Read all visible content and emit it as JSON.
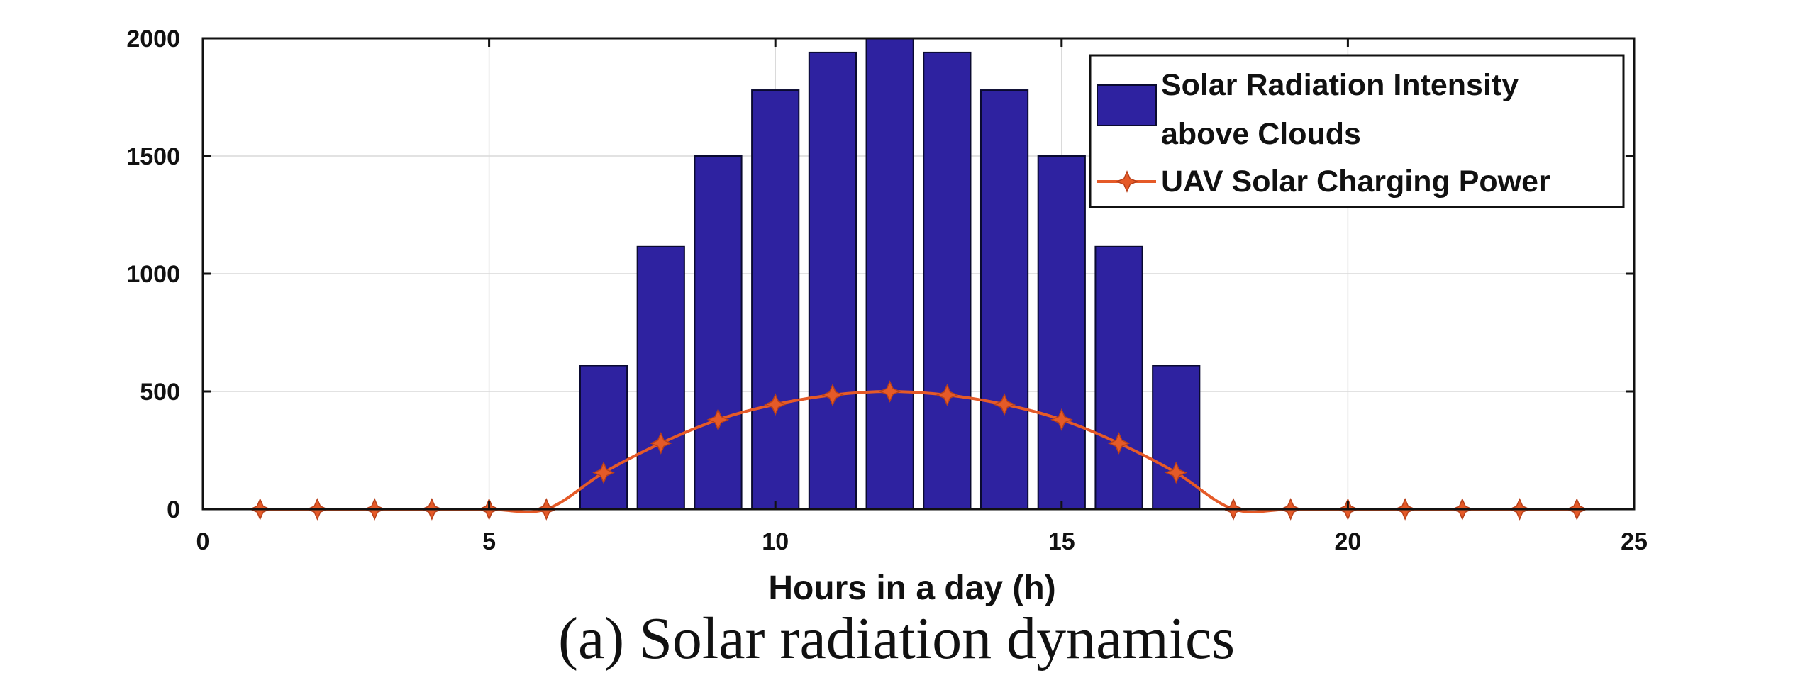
{
  "chart_data": {
    "type": "bar",
    "x": [
      1,
      2,
      3,
      4,
      5,
      6,
      7,
      8,
      9,
      10,
      11,
      12,
      13,
      14,
      15,
      16,
      17,
      18,
      19,
      20,
      21,
      22,
      23,
      24
    ],
    "series": [
      {
        "name": "Solar Radiation Intensity above Clouds",
        "type": "bar",
        "color": "#2e22a0",
        "values": [
          0,
          0,
          0,
          0,
          0,
          0,
          610,
          1115,
          1500,
          1780,
          1940,
          2000,
          1940,
          1780,
          1500,
          1115,
          610,
          0,
          0,
          0,
          0,
          0,
          0,
          0
        ]
      },
      {
        "name": "UAV Solar Charging Power",
        "type": "line",
        "color": "#e55a28",
        "values": [
          0,
          0,
          0,
          0,
          0,
          0,
          155,
          280,
          380,
          445,
          485,
          500,
          485,
          445,
          380,
          280,
          155,
          0,
          0,
          0,
          0,
          0,
          0,
          0
        ]
      }
    ],
    "xlabel": "Hours in a day (h)",
    "ylabel": "",
    "xlim": [
      0,
      25
    ],
    "ylim": [
      0,
      2000
    ],
    "xticks": [
      0,
      5,
      10,
      15,
      20,
      25
    ],
    "yticks": [
      0,
      500,
      1000,
      1500,
      2000
    ],
    "grid": true,
    "legend_position": "top-right",
    "legend_lines": [
      [
        "Solar Radiation Intensity",
        "above Clouds"
      ],
      [
        "UAV Solar Charging Power"
      ]
    ]
  },
  "caption": "(a)  Solar radiation dynamics"
}
